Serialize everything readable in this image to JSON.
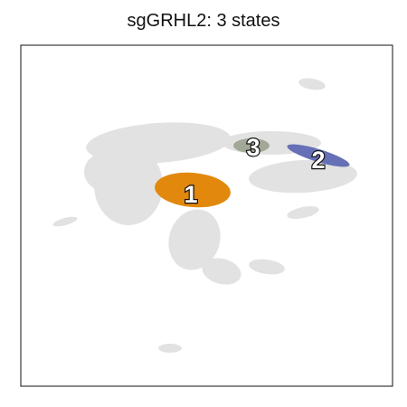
{
  "title": "sgGRHL2: 3 states",
  "chart_data": {
    "type": "scatter",
    "title": "sgGRHL2: 3 states",
    "xlabel": "",
    "ylabel": "",
    "grid": false,
    "background_color": "#e2e2e2",
    "series": [
      {
        "name": "1",
        "label": "1",
        "color": "#e2880c"
      },
      {
        "name": "2",
        "label": "2",
        "color": "#6670b6"
      },
      {
        "name": "3",
        "label": "3",
        "color": "#a2a897"
      }
    ]
  }
}
